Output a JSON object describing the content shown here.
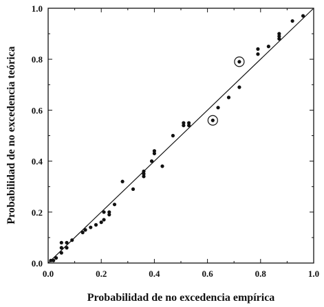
{
  "chart_data": {
    "type": "scatter",
    "title": "",
    "xlabel": "Probabilidad de no excedencia empírica",
    "ylabel": "Probabilidad de no excedencia teórica",
    "xlim": [
      0.0,
      1.0
    ],
    "ylim": [
      0.0,
      1.0
    ],
    "xticks": [
      "0.0",
      "0.2",
      "0.4",
      "0.6",
      "0.8",
      "1.0"
    ],
    "yticks": [
      "0.0",
      "0.2",
      "0.4",
      "0.6",
      "0.8",
      "1.0"
    ],
    "grid": false,
    "legend": "none",
    "reference_line": [
      [
        0.0,
        0.0
      ],
      [
        1.0,
        1.0
      ]
    ],
    "points": [
      {
        "x": 0.01,
        "y": 0.01
      },
      {
        "x": 0.02,
        "y": 0.01
      },
      {
        "x": 0.03,
        "y": 0.02
      },
      {
        "x": 0.05,
        "y": 0.04
      },
      {
        "x": 0.05,
        "y": 0.06
      },
      {
        "x": 0.05,
        "y": 0.08
      },
      {
        "x": 0.07,
        "y": 0.06
      },
      {
        "x": 0.07,
        "y": 0.08
      },
      {
        "x": 0.09,
        "y": 0.09
      },
      {
        "x": 0.13,
        "y": 0.12
      },
      {
        "x": 0.14,
        "y": 0.13
      },
      {
        "x": 0.16,
        "y": 0.14
      },
      {
        "x": 0.18,
        "y": 0.15
      },
      {
        "x": 0.2,
        "y": 0.16
      },
      {
        "x": 0.21,
        "y": 0.17
      },
      {
        "x": 0.21,
        "y": 0.2
      },
      {
        "x": 0.23,
        "y": 0.19
      },
      {
        "x": 0.23,
        "y": 0.2
      },
      {
        "x": 0.25,
        "y": 0.23
      },
      {
        "x": 0.28,
        "y": 0.32
      },
      {
        "x": 0.32,
        "y": 0.29
      },
      {
        "x": 0.36,
        "y": 0.34
      },
      {
        "x": 0.36,
        "y": 0.35
      },
      {
        "x": 0.36,
        "y": 0.36
      },
      {
        "x": 0.39,
        "y": 0.4
      },
      {
        "x": 0.4,
        "y": 0.43
      },
      {
        "x": 0.4,
        "y": 0.44
      },
      {
        "x": 0.43,
        "y": 0.38
      },
      {
        "x": 0.47,
        "y": 0.5
      },
      {
        "x": 0.51,
        "y": 0.54
      },
      {
        "x": 0.51,
        "y": 0.55
      },
      {
        "x": 0.53,
        "y": 0.54
      },
      {
        "x": 0.53,
        "y": 0.55
      },
      {
        "x": 0.62,
        "y": 0.56,
        "circled": true
      },
      {
        "x": 0.64,
        "y": 0.61
      },
      {
        "x": 0.68,
        "y": 0.65
      },
      {
        "x": 0.72,
        "y": 0.69
      },
      {
        "x": 0.72,
        "y": 0.79,
        "circled": true
      },
      {
        "x": 0.79,
        "y": 0.82
      },
      {
        "x": 0.79,
        "y": 0.84
      },
      {
        "x": 0.83,
        "y": 0.85
      },
      {
        "x": 0.87,
        "y": 0.88
      },
      {
        "x": 0.87,
        "y": 0.89
      },
      {
        "x": 0.87,
        "y": 0.9
      },
      {
        "x": 0.92,
        "y": 0.95
      },
      {
        "x": 0.96,
        "y": 0.97
      }
    ]
  }
}
